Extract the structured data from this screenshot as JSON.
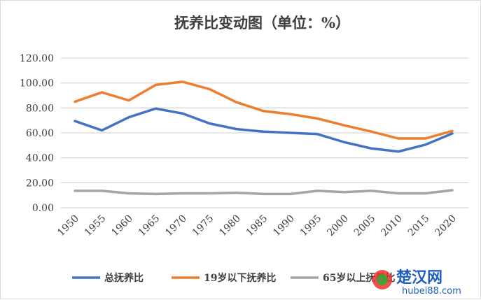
{
  "chart_data": {
    "type": "line",
    "title": "抚养比变动图（单位：%）",
    "x": [
      "1950",
      "1955",
      "1960",
      "1965",
      "1970",
      "1975",
      "1980",
      "1985",
      "1990",
      "1995",
      "2000",
      "2005",
      "2010",
      "2015",
      "2020"
    ],
    "series": [
      {
        "name": "总抚养比",
        "color": "#4472c4",
        "values": [
          69.5,
          62,
          72.5,
          79.5,
          75.5,
          67.5,
          63,
          61,
          60,
          59,
          52.5,
          47.5,
          45,
          50.5,
          59.5
        ]
      },
      {
        "name": "19岁以下抚养比",
        "color": "#ed7d31",
        "values": [
          85,
          92.5,
          86,
          98.5,
          101,
          95,
          84.5,
          77.5,
          75,
          71.5,
          66,
          61,
          55.5,
          55.5,
          61.5
        ]
      },
      {
        "name": "65岁以上抚养比",
        "color": "#a5a5a5",
        "values": [
          13.5,
          13.5,
          11.5,
          11,
          11.5,
          11.5,
          12,
          11,
          11,
          13.5,
          12.5,
          13.5,
          11.5,
          11.5,
          14
        ]
      }
    ],
    "yticks": [
      "0.00",
      "20.00",
      "40.00",
      "60.00",
      "80.00",
      "100.00",
      "120.00"
    ],
    "ylim": [
      0,
      120
    ],
    "grid": true,
    "legend": "bottom"
  },
  "watermark": {
    "text": "楚汉网",
    "url_text": "hubei88.com"
  }
}
